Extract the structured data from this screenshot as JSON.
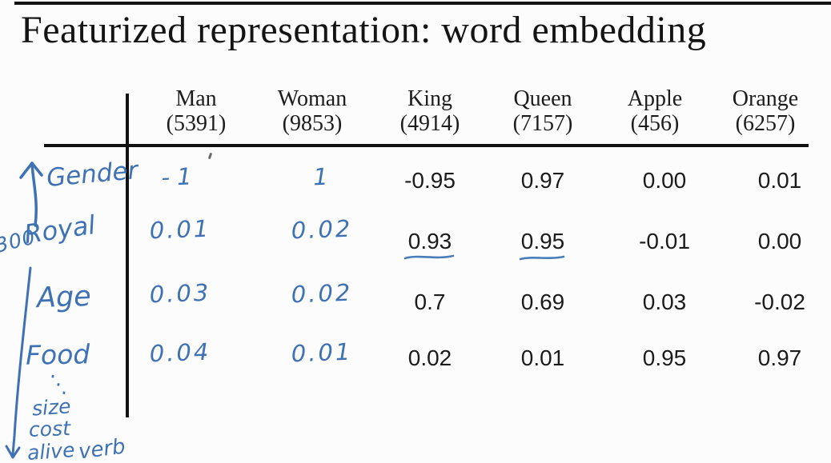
{
  "title": "Featurized representation: word embedding",
  "table": {
    "columns": [
      {
        "word": "Man",
        "count": "(5391)"
      },
      {
        "word": "Woman",
        "count": "(9853)"
      },
      {
        "word": "King",
        "count": "(4914)"
      },
      {
        "word": "Queen",
        "count": "(7157)"
      },
      {
        "word": "Apple",
        "count": "(456)"
      },
      {
        "word": "Orange",
        "count": "(6257)"
      }
    ],
    "rows": [
      {
        "feature": "Gender",
        "values": [
          "-1",
          "1",
          "-0.95",
          "0.97",
          "0.00",
          "0.01"
        ]
      },
      {
        "feature": "Royal",
        "values": [
          "0.01",
          "0.02",
          "0.93",
          "0.95",
          "-0.01",
          "0.00"
        ]
      },
      {
        "feature": "Age",
        "values": [
          "0.03",
          "0.02",
          "0.7",
          "0.69",
          "0.03",
          "-0.02"
        ]
      },
      {
        "feature": "Food",
        "values": [
          "0.04",
          "0.01",
          "0.02",
          "0.01",
          "0.95",
          "0.97"
        ]
      }
    ],
    "handwritten_value_columns": 2,
    "underlined_cells": [
      {
        "row": 1,
        "col": 2
      },
      {
        "row": 1,
        "col": 3
      }
    ]
  },
  "annotations": {
    "vector_dimension": "300",
    "up_arrow": "↑",
    "down_arrow": "↓",
    "ellipsis": "⋱",
    "more_features": [
      "size",
      "cost",
      "alive",
      "verb"
    ]
  },
  "colors": {
    "ink": "#1c1c1c",
    "handwriting_blue": "#3f72b4",
    "background": "#fcfcfc"
  }
}
